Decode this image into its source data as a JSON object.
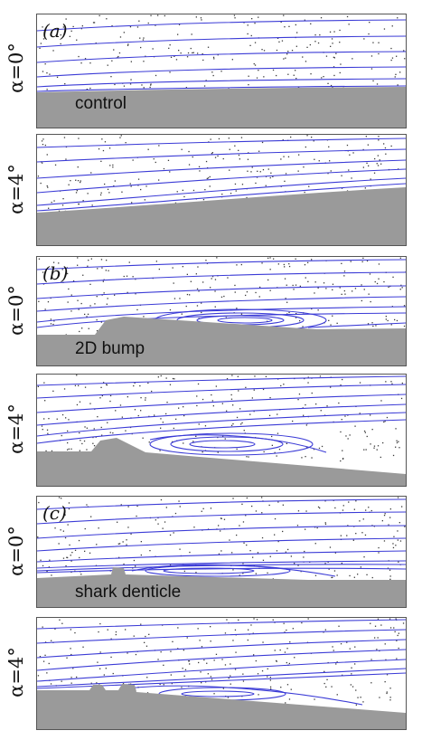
{
  "figure": {
    "row_labels": [
      "α=0°",
      "α=4°",
      "α=0°",
      "α=4°",
      "α=0°",
      "α=4°"
    ],
    "groups": [
      {
        "tag": "(a)",
        "label": "control"
      },
      {
        "tag": "(b)",
        "label": "2D bump"
      },
      {
        "tag": "(c)",
        "label": "shark denticle"
      }
    ]
  },
  "colors": {
    "streamline": "#3b3bd6",
    "surface": "#9a9a9a",
    "particles": "#3a3a3a",
    "border": "#555555"
  }
}
